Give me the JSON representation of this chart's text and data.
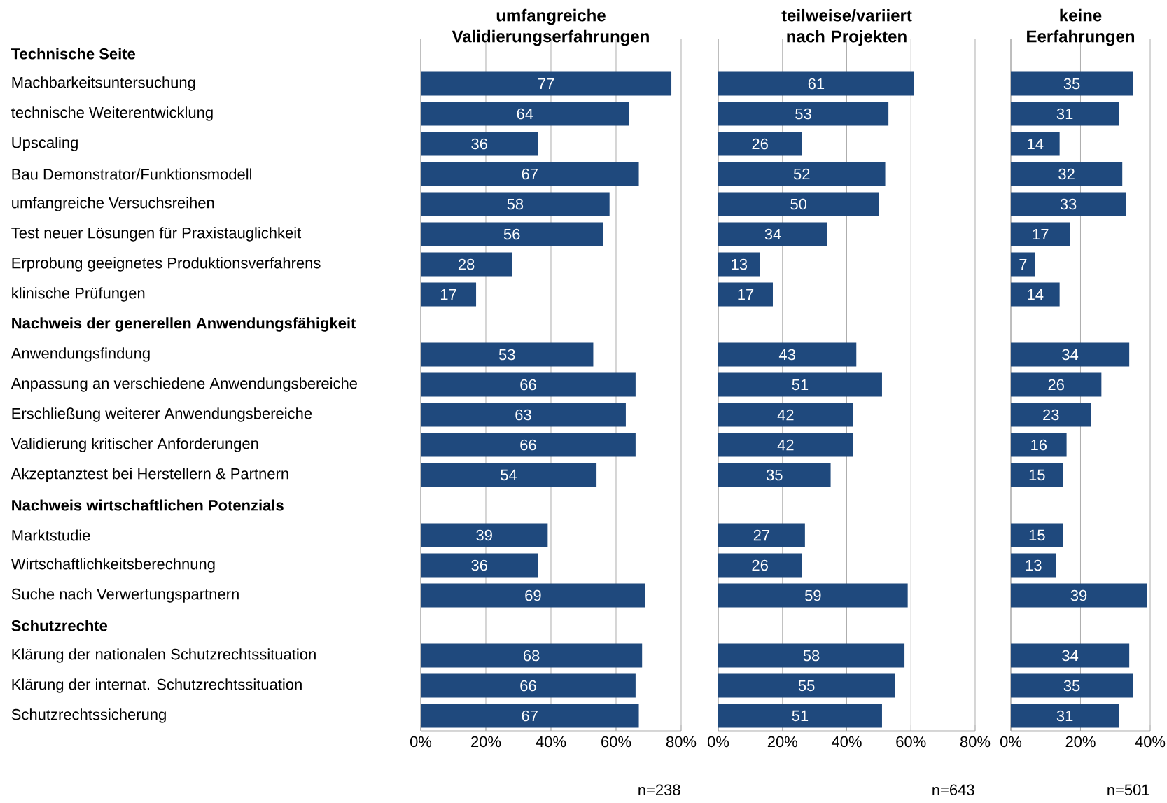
{
  "chart_data": [
    {
      "type": "bar",
      "orientation": "horizontal",
      "title": "umfangreiche Validierungserfahrungen",
      "color": "#1f497d",
      "data_labels": true,
      "grid": "x",
      "categories": [
        "**Technische Seite**",
        "Machbarkeitsuntersuchung",
        "technische Weiterentwicklung",
        "Upscaling",
        "Bau Demonstrator/Funktionsmodell",
        "umfangreiche Versuchsreihen",
        "Test neuer Lösungen für Praxistauglichkeit",
        "Erprobung geeignetes Produktionsverfahrens",
        "klinische Prüfungen",
        "**Nachweis der generellen Anwendungsfähigkeit**",
        "Anwendungsfindung",
        "Anpassung an verschiedene Anwendungsbereiche",
        "Erschließung weiterer Anwendungsbereiche",
        "Validierung kritischer Anforderungen",
        "Akzeptanztest bei Herstellern & Partnern",
        "**Nachweis wirtschaftlichen Potenzials**",
        "Marktstudie",
        "Wirtschaftlichkeitsberechnung",
        "Suche nach Verwertungspartnern",
        "**Schutzrechte**",
        "Klärung der nationalen Schutzrechtssituation",
        "Klärung der internat. Schutzrechtssituation",
        "Schutzrechtssicherung"
      ],
      "values": [
        null,
        77,
        64,
        36,
        67,
        58,
        56,
        28,
        17,
        null,
        53,
        66,
        63,
        66,
        54,
        null,
        39,
        36,
        69,
        null,
        68,
        66,
        67
      ],
      "xlim": [
        0,
        80
      ],
      "xticks": [
        {
          "value": 0,
          "label": "0%"
        },
        {
          "value": 20,
          "label": "20%"
        },
        {
          "value": 40,
          "label": "40%"
        },
        {
          "value": 60,
          "label": "60%"
        },
        {
          "value": 80,
          "label": "80%"
        }
      ],
      "annotations": [
        "n=238"
      ]
    },
    {
      "type": "bar",
      "orientation": "horizontal",
      "title": "teilweise/variiert nach Projekten",
      "color": "#1f497d",
      "data_labels": true,
      "grid": "x",
      "tick_labels": "x",
      "categories": [
        null,
        null,
        null,
        null,
        null,
        null,
        null,
        null,
        null,
        null,
        null,
        null,
        null,
        null,
        null,
        null,
        null,
        null,
        null,
        null,
        null,
        null,
        null
      ],
      "values": [
        null,
        61,
        53,
        26,
        52,
        50,
        34,
        13,
        17,
        null,
        43,
        51,
        42,
        42,
        35,
        null,
        27,
        26,
        59,
        null,
        58,
        55,
        51
      ],
      "xlim": [
        0,
        80
      ],
      "xticks": [
        {
          "value": 0,
          "label": "0%"
        },
        {
          "value": 20,
          "label": "20%"
        },
        {
          "value": 40,
          "label": "40%"
        },
        {
          "value": 60,
          "label": "60%"
        },
        {
          "value": 80,
          "label": "80%"
        }
      ],
      "annotations": [
        "n=643"
      ]
    },
    {
      "type": "bar",
      "orientation": "horizontal",
      "title": "keine Eerfahrungen",
      "color": "#1f497d",
      "data_labels": true,
      "grid": "x",
      "tick_labels": "x",
      "categories": [
        null,
        null,
        null,
        null,
        null,
        null,
        null,
        null,
        null,
        null,
        null,
        null,
        null,
        null,
        null,
        null,
        null,
        null,
        null,
        null,
        null,
        null,
        null
      ],
      "values": [
        null,
        35,
        31,
        14,
        32,
        33,
        17,
        7,
        14,
        null,
        34,
        26,
        23,
        16,
        15,
        null,
        15,
        13,
        39,
        null,
        34,
        35,
        31
      ],
      "xlim": [
        0,
        40
      ],
      "xticks": [
        {
          "value": 0,
          "label": "0%"
        },
        {
          "value": 20,
          "label": "20%"
        },
        {
          "value": 40,
          "label": "40%"
        }
      ],
      "annotations": [
        "n=501"
      ]
    }
  ]
}
